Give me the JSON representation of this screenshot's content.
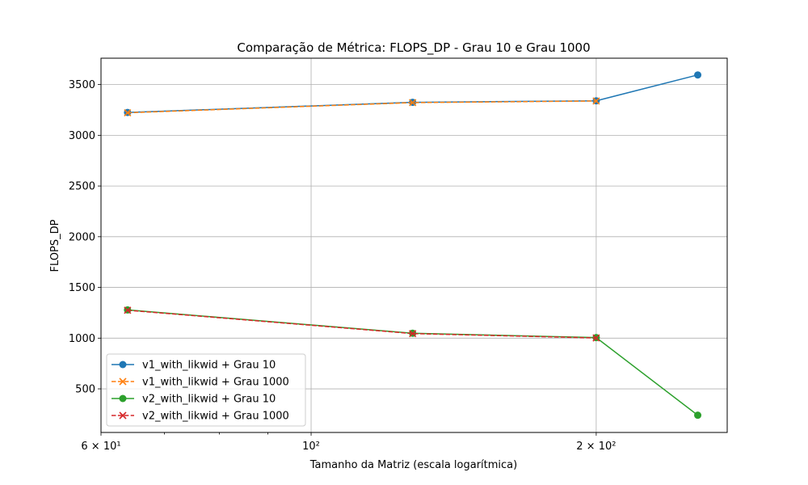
{
  "chart_data": {
    "type": "line",
    "title": "Comparação de Métrica: FLOPS_DP - Grau 10 e Grau 1000",
    "xlabel": "Tamanho da Matriz (escala logarítmica)",
    "ylabel": "FLOPS_DP",
    "x_scale": "log",
    "xlim": [
      60,
      275
    ],
    "ylim": [
      70,
      3760
    ],
    "x_ticks": [
      {
        "value": 60,
        "label": "6 × 10¹",
        "major": true
      },
      {
        "value": 100,
        "label": "10²",
        "major": true
      },
      {
        "value": 200,
        "label": "2 × 10²",
        "major": true
      }
    ],
    "x_minor_ticks": [
      70,
      80,
      90,
      300
    ],
    "y_ticks": [
      500,
      1000,
      1500,
      2000,
      2500,
      3000,
      3500
    ],
    "grid": true,
    "legend_position": "lower left",
    "series": [
      {
        "name": "v1_with_likwid + Grau 10",
        "color": "#1f77b4",
        "marker": "circle",
        "dashed": false,
        "x": [
          64,
          128,
          200,
          256
        ],
        "y": [
          3225,
          3325,
          3340,
          3595
        ]
      },
      {
        "name": "v1_with_likwid + Grau 1000",
        "color": "#ff7f0e",
        "marker": "x",
        "dashed": true,
        "x": [
          64,
          128,
          200
        ],
        "y": [
          3222,
          3322,
          3338
        ]
      },
      {
        "name": "v2_with_likwid + Grau 10",
        "color": "#2ca02c",
        "marker": "circle",
        "dashed": false,
        "x": [
          64,
          128,
          200,
          256
        ],
        "y": [
          1278,
          1048,
          1005,
          240
        ]
      },
      {
        "name": "v2_with_likwid + Grau 1000",
        "color": "#d62728",
        "marker": "x",
        "dashed": true,
        "x": [
          64,
          128,
          200
        ],
        "y": [
          1275,
          1045,
          1002
        ]
      }
    ]
  }
}
